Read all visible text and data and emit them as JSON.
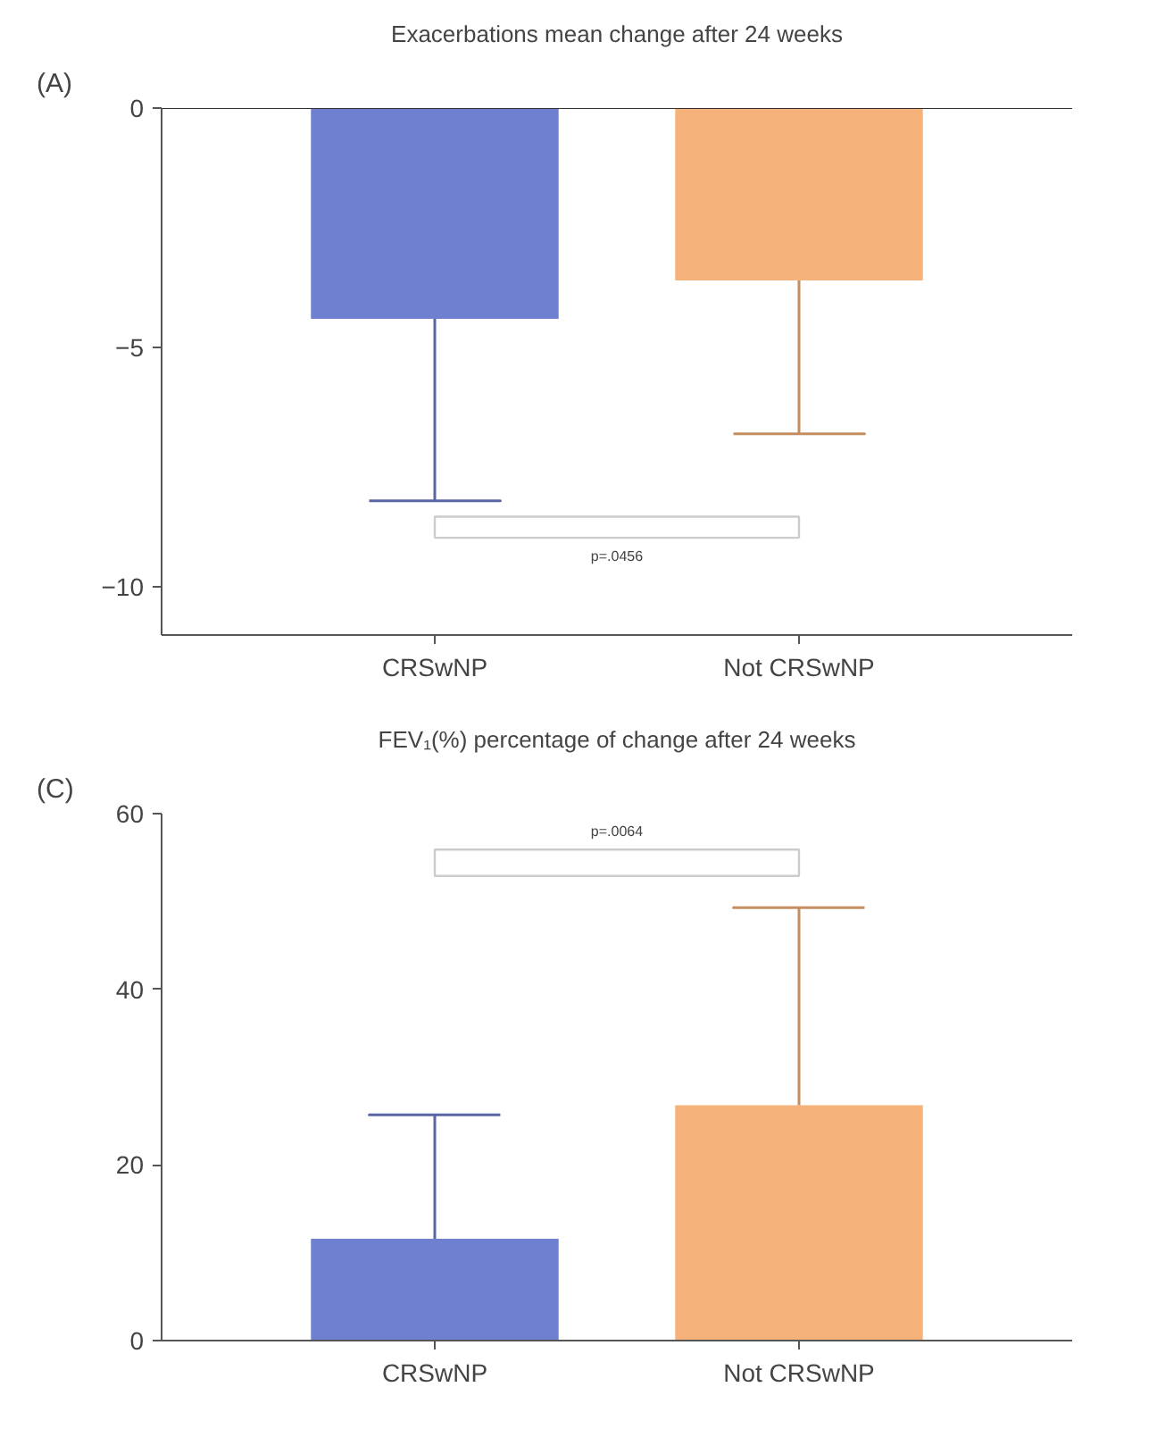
{
  "chart_data": [
    {
      "type": "bar",
      "title": "Exacerbations mean change after 24 weeks",
      "categories": [
        "CRSwNP",
        "Not CRSwNP"
      ],
      "values": [
        -4.4,
        -3.6
      ],
      "colors": [
        "#7080d0",
        "#f5b27a"
      ],
      "errors": [
        [
          -8.2,
          -4.4
        ],
        [
          -6.8,
          -3.6
        ]
      ],
      "ylim": [
        -11,
        0
      ],
      "yticks": [
        -10,
        -5,
        0
      ],
      "grid": false,
      "annotations": [
        "(A)",
        "p=.0456"
      ]
    },
    {
      "type": "bar",
      "title": "FEV₁(%) percentage of change after 24 weeks",
      "categories": [
        "CRSwNP",
        "Not CRSwNP"
      ],
      "values": [
        11.6,
        26.8
      ],
      "colors": [
        "#7080d0",
        "#f5b27a"
      ],
      "errors": [
        [
          11.6,
          25.7
        ],
        [
          26.8,
          49.3
        ]
      ],
      "ylim": [
        0,
        60
      ],
      "yticks": [
        0,
        20,
        40,
        60
      ],
      "grid": false,
      "annotations": [
        "(C)",
        "p=.0064"
      ]
    }
  ]
}
